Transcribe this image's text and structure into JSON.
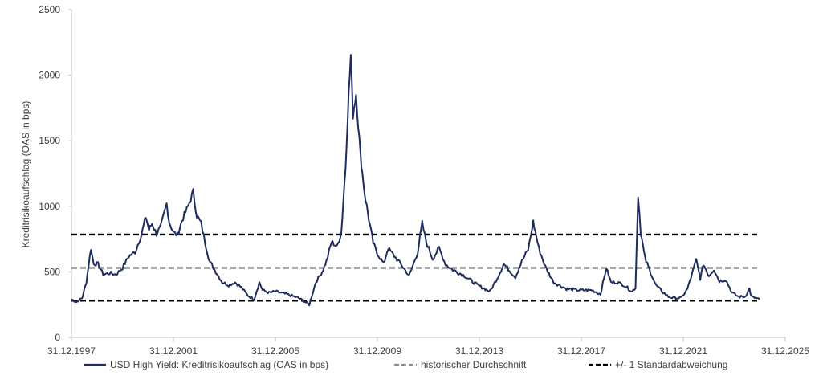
{
  "chart_data": {
    "type": "line",
    "ylabel": "Kreditrisikoaufschlag (OAS in bps)",
    "xlabel": "",
    "title": "",
    "x_axis": {
      "min": "1997-12-31",
      "max": "2025-12-31",
      "ticks": [
        "31.12.1997",
        "31.12.2001",
        "31.12.2005",
        "31.12.2009",
        "31.12.2013",
        "31.12.2017",
        "31.12.2021",
        "31.12.2025"
      ]
    },
    "y_axis": {
      "min": 0,
      "max": 2500,
      "ticks": [
        "0",
        "500",
        "1000",
        "1500",
        "2000",
        "2500"
      ]
    },
    "grid": false,
    "legend_position": "bottom",
    "series": [
      {
        "name": "USD High Yield: Kreditrisikoaufschlag (OAS in bps)",
        "color": "#1f2d5c",
        "style": "solid",
        "points": [
          [
            "1997-12-31",
            290
          ],
          [
            "1998-03-15",
            270
          ],
          [
            "1998-06-01",
            300
          ],
          [
            "1998-08-01",
            420
          ],
          [
            "1998-10-05",
            680
          ],
          [
            "1998-11-15",
            560
          ],
          [
            "1999-01-15",
            560
          ],
          [
            "1999-04-01",
            480
          ],
          [
            "1999-07-01",
            490
          ],
          [
            "1999-10-01",
            480
          ],
          [
            "2000-01-01",
            530
          ],
          [
            "2000-04-01",
            620
          ],
          [
            "2000-07-01",
            650
          ],
          [
            "2000-10-01",
            790
          ],
          [
            "2000-12-01",
            920
          ],
          [
            "2001-01-15",
            820
          ],
          [
            "2001-03-01",
            870
          ],
          [
            "2001-05-01",
            790
          ],
          [
            "2001-07-01",
            840
          ],
          [
            "2001-09-25",
            1020
          ],
          [
            "2001-11-01",
            880
          ],
          [
            "2002-01-01",
            800
          ],
          [
            "2002-03-01",
            780
          ],
          [
            "2002-05-01",
            890
          ],
          [
            "2002-07-30",
            1000
          ],
          [
            "2002-10-10",
            1110
          ],
          [
            "2002-12-01",
            930
          ],
          [
            "2003-02-01",
            870
          ],
          [
            "2003-04-01",
            720
          ],
          [
            "2003-06-01",
            580
          ],
          [
            "2003-09-01",
            500
          ],
          [
            "2003-12-01",
            420
          ],
          [
            "2004-03-01",
            400
          ],
          [
            "2004-06-01",
            420
          ],
          [
            "2004-09-01",
            380
          ],
          [
            "2004-12-01",
            320
          ],
          [
            "2005-03-01",
            290
          ],
          [
            "2005-05-15",
            420
          ],
          [
            "2005-07-01",
            360
          ],
          [
            "2005-10-01",
            340
          ],
          [
            "2006-01-01",
            350
          ],
          [
            "2006-06-01",
            330
          ],
          [
            "2006-12-01",
            300
          ],
          [
            "2007-05-01",
            250
          ],
          [
            "2007-08-01",
            420
          ],
          [
            "2007-11-01",
            500
          ],
          [
            "2008-01-01",
            580
          ],
          [
            "2008-03-15",
            730
          ],
          [
            "2008-06-01",
            690
          ],
          [
            "2008-08-01",
            800
          ],
          [
            "2008-10-01",
            1300
          ],
          [
            "2008-11-01",
            1700
          ],
          [
            "2008-12-15",
            2150
          ],
          [
            "2009-01-15",
            1700
          ],
          [
            "2009-03-01",
            1860
          ],
          [
            "2009-05-01",
            1400
          ],
          [
            "2009-07-01",
            1100
          ],
          [
            "2009-09-01",
            900
          ],
          [
            "2009-11-01",
            720
          ],
          [
            "2010-01-01",
            640
          ],
          [
            "2010-04-01",
            560
          ],
          [
            "2010-06-01",
            680
          ],
          [
            "2010-09-01",
            620
          ],
          [
            "2010-12-01",
            560
          ],
          [
            "2011-04-01",
            470
          ],
          [
            "2011-08-01",
            650
          ],
          [
            "2011-10-04",
            870
          ],
          [
            "2011-12-01",
            730
          ],
          [
            "2012-03-01",
            600
          ],
          [
            "2012-06-01",
            680
          ],
          [
            "2012-09-01",
            560
          ],
          [
            "2012-12-01",
            520
          ],
          [
            "2013-06-01",
            470
          ],
          [
            "2013-12-01",
            400
          ],
          [
            "2014-06-01",
            350
          ],
          [
            "2014-10-01",
            470
          ],
          [
            "2014-12-15",
            560
          ],
          [
            "2015-06-01",
            460
          ],
          [
            "2015-09-01",
            580
          ],
          [
            "2015-12-01",
            670
          ],
          [
            "2016-02-11",
            880
          ],
          [
            "2016-05-01",
            680
          ],
          [
            "2016-08-01",
            540
          ],
          [
            "2016-12-01",
            420
          ],
          [
            "2017-06-01",
            370
          ],
          [
            "2017-12-01",
            360
          ],
          [
            "2018-06-01",
            360
          ],
          [
            "2018-10-01",
            330
          ],
          [
            "2018-12-25",
            530
          ],
          [
            "2019-03-01",
            420
          ],
          [
            "2019-06-01",
            420
          ],
          [
            "2019-09-01",
            400
          ],
          [
            "2019-12-31",
            350
          ],
          [
            "2020-02-15",
            380
          ],
          [
            "2020-03-23",
            1090
          ],
          [
            "2020-05-01",
            800
          ],
          [
            "2020-07-01",
            600
          ],
          [
            "2020-09-01",
            520
          ],
          [
            "2020-12-01",
            400
          ],
          [
            "2021-03-01",
            350
          ],
          [
            "2021-06-01",
            310
          ],
          [
            "2021-09-01",
            300
          ],
          [
            "2021-12-01",
            300
          ],
          [
            "2022-03-01",
            370
          ],
          [
            "2022-07-05",
            590
          ],
          [
            "2022-09-01",
            450
          ],
          [
            "2022-10-15",
            560
          ],
          [
            "2023-01-01",
            470
          ],
          [
            "2023-03-15",
            520
          ],
          [
            "2023-06-01",
            430
          ],
          [
            "2023-09-01",
            440
          ],
          [
            "2023-12-01",
            340
          ],
          [
            "2024-03-01",
            310
          ],
          [
            "2024-06-01",
            310
          ],
          [
            "2024-08-05",
            370
          ],
          [
            "2024-09-01",
            310
          ],
          [
            "2024-11-01",
            300
          ],
          [
            "2024-12-31",
            290
          ]
        ]
      },
      {
        "name": "historischer Durchschnitt",
        "color": "#8c8c8c",
        "style": "dashed",
        "points": [
          [
            "1997-12-31",
            530
          ],
          [
            "2024-12-31",
            530
          ]
        ]
      },
      {
        "name": "+/- 1 Standardabweichung",
        "color": "#000000",
        "style": "dashed",
        "points": [
          [
            "1997-12-31",
            785
          ],
          [
            "2024-12-31",
            785
          ]
        ]
      },
      {
        "name": "",
        "legend_hidden": true,
        "color": "#000000",
        "style": "dashed",
        "points": [
          [
            "1997-12-31",
            280
          ],
          [
            "2024-12-31",
            280
          ]
        ]
      }
    ]
  }
}
